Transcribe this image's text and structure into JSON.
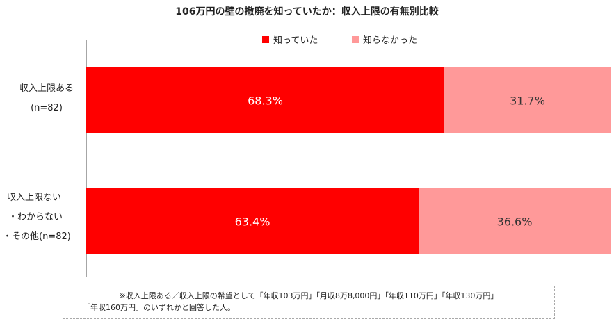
{
  "chart_data": {
    "type": "bar",
    "orientation": "horizontal",
    "stacked": true,
    "title": "106万円の壁の撤廃を知っていたか：収入上限の有無別比較",
    "categories": [
      [
        "収入上限ある",
        "(n=82)"
      ],
      [
        "収入上限ない",
        "・わからない",
        "・その他(n=82)"
      ]
    ],
    "series": [
      {
        "name": "知っていた",
        "values": [
          68.3,
          63.4
        ],
        "labels": [
          "68.3%",
          "63.4%"
        ],
        "color": "#ff0000",
        "label_color": "#ffffff"
      },
      {
        "name": "知らなかった",
        "values": [
          31.7,
          36.6
        ],
        "labels": [
          "31.7%",
          "36.6%"
        ],
        "color": "#ff9999",
        "label_color": "#333333"
      }
    ],
    "xlim": [
      0,
      100
    ],
    "legend": "top-center",
    "grid": false
  },
  "footnote": {
    "line1": "※収入上限ある／収入上限の希望として「年収103万円」「月収8万8,000円」「年収110万円」「年収130万円」",
    "line2": "「年収160万円」のいずれかと回答した人。"
  }
}
